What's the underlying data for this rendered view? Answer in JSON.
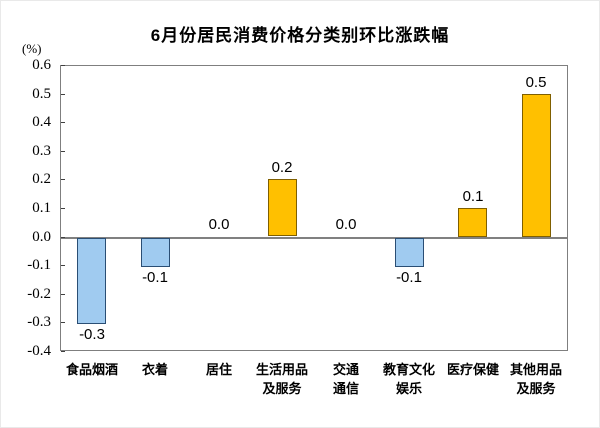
{
  "title": "6月份居民消费价格分类别环比涨跌幅",
  "unit_label": "(%)",
  "chart_data": {
    "type": "bar",
    "title": "6月份居民消费价格分类别环比涨跌幅",
    "ylabel": "(%)",
    "xlabel": "",
    "categories": [
      "食品烟酒",
      "衣着",
      "居住",
      "生活用品及服务",
      "交通通信",
      "教育文化娱乐",
      "医疗保健",
      "其他用品及服务"
    ],
    "category_display_labels": [
      "食品烟酒",
      "衣着",
      "居住",
      "生活用品\n及服务",
      "交通\n通信",
      "教育文化\n娱乐",
      "医疗保健",
      "其他用品\n及服务"
    ],
    "values": [
      -0.3,
      -0.1,
      0.0,
      0.2,
      0.0,
      -0.1,
      0.1,
      0.5
    ],
    "data_labels": [
      "-0.3",
      "-0.1",
      "0.0",
      "0.2",
      "0.0",
      "-0.1",
      "0.1",
      "0.5"
    ],
    "ylim": [
      -0.4,
      0.6
    ],
    "y_ticks": [
      0.6,
      0.5,
      0.4,
      0.3,
      0.2,
      0.1,
      0.0,
      -0.1,
      -0.2,
      -0.3,
      -0.4
    ],
    "y_tick_labels": [
      "0.6",
      "0.5",
      "0.4",
      "0.3",
      "0.2",
      "0.1",
      "0.0",
      "-0.1",
      "-0.2",
      "-0.3",
      "-0.4"
    ],
    "grid": false,
    "legend": "none",
    "colors": {
      "positive_fill": "#FFC000",
      "positive_border": "#7F5F00",
      "negative_fill": "#A0CBF0",
      "negative_border": "#2A4E74",
      "zero_line": "#808080",
      "plot_border": "#7F7F7F",
      "tick_mark": "#404040",
      "text": "#000000"
    }
  }
}
